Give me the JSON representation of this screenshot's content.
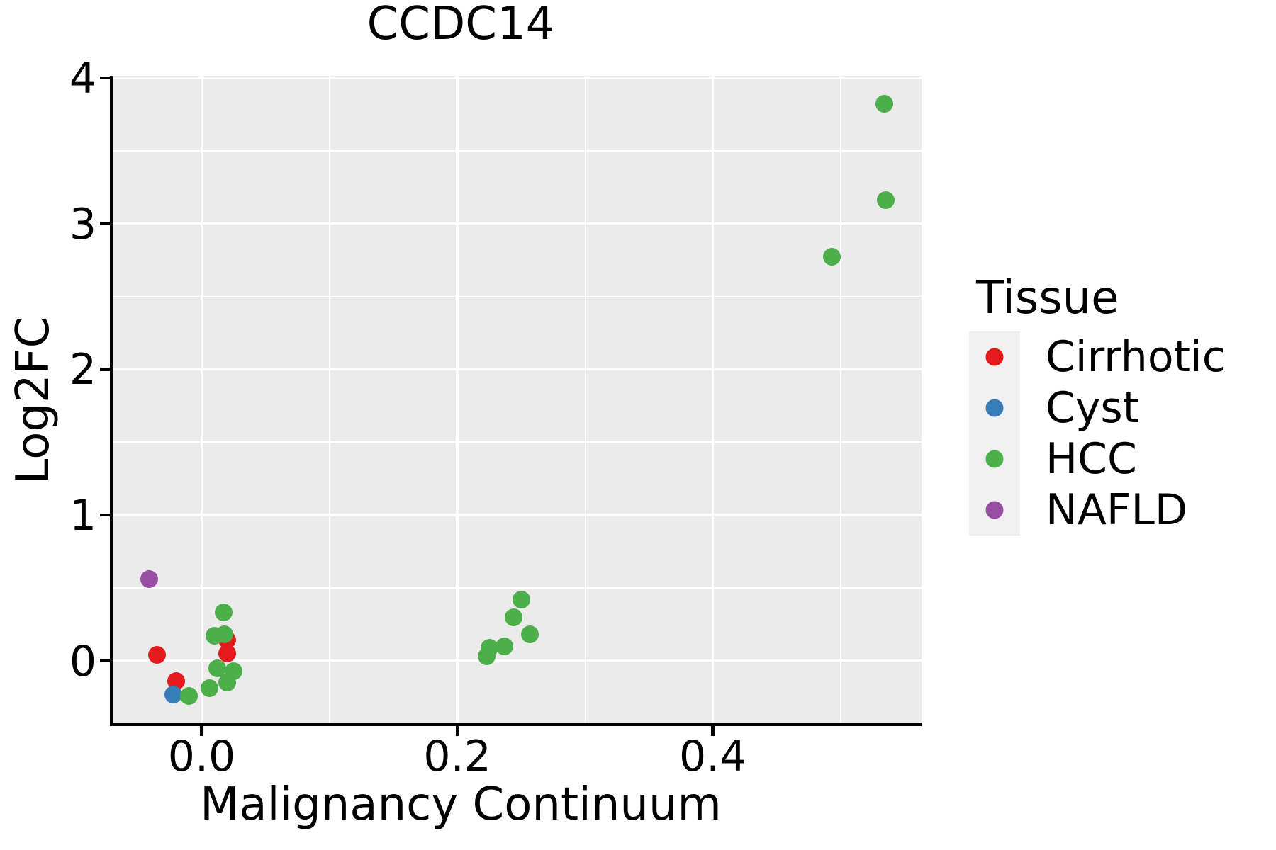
{
  "title": "CCDC14",
  "axes": {
    "x": {
      "label": "Malignancy Continuum",
      "tick_values": [
        0.0,
        0.2,
        0.4
      ],
      "tick_labels": [
        "0.0",
        "0.2",
        "0.4"
      ],
      "minor_tick_values": [
        0.1,
        0.3,
        0.5
      ],
      "range": [
        -0.0696,
        0.5632
      ]
    },
    "y": {
      "label": "Log2FC",
      "tick_values": [
        0,
        1,
        2,
        3,
        4
      ],
      "tick_labels": [
        "0",
        "1",
        "2",
        "3",
        "4"
      ],
      "minor_tick_values": [
        0.5,
        1.5,
        2.5,
        3.5
      ],
      "range": [
        -0.434,
        4.014
      ]
    }
  },
  "legend": {
    "title": "Tissue",
    "items": [
      {
        "label": "Cirrhotic",
        "color": "#E41A1C"
      },
      {
        "label": "Cyst",
        "color": "#377EB8"
      },
      {
        "label": "HCC",
        "color": "#4DAF4A"
      },
      {
        "label": "NAFLD",
        "color": "#984EA3"
      }
    ]
  },
  "colors": {
    "panel_background": "#EBEBEB",
    "gridline": "#FFFFFF",
    "axis": "#000000",
    "legend_key_background": "#F0F0F0"
  },
  "chart_data": {
    "type": "scatter",
    "title": "CCDC14",
    "xlabel": "Malignancy Continuum",
    "ylabel": "Log2FC",
    "xlim": [
      -0.0696,
      0.5632
    ],
    "ylim": [
      -0.434,
      4.014
    ],
    "grid": "major-and-minor",
    "legend_position": "right",
    "legend_title": "Tissue",
    "series": [
      {
        "name": "Cirrhotic",
        "color": "#E41A1C",
        "points": [
          [
            -0.035,
            0.04
          ],
          [
            -0.02,
            -0.14
          ],
          [
            0.02,
            0.14
          ],
          [
            0.02,
            0.05
          ]
        ]
      },
      {
        "name": "Cyst",
        "color": "#377EB8",
        "points": [
          [
            -0.022,
            -0.23
          ]
        ]
      },
      {
        "name": "HCC",
        "color": "#4DAF4A",
        "points": [
          [
            0.017,
            0.33
          ],
          [
            0.01,
            0.17
          ],
          [
            0.018,
            0.18
          ],
          [
            0.012,
            -0.05
          ],
          [
            0.025,
            -0.07
          ],
          [
            0.02,
            -0.15
          ],
          [
            0.006,
            -0.19
          ],
          [
            -0.01,
            -0.24
          ],
          [
            0.25,
            0.42
          ],
          [
            0.244,
            0.3
          ],
          [
            0.257,
            0.18
          ],
          [
            0.237,
            0.1
          ],
          [
            0.225,
            0.09
          ],
          [
            0.223,
            0.03
          ],
          [
            0.534,
            3.82
          ],
          [
            0.535,
            3.16
          ],
          [
            0.493,
            2.77
          ]
        ]
      },
      {
        "name": "NAFLD",
        "color": "#984EA3",
        "points": [
          [
            -0.041,
            0.56
          ]
        ]
      }
    ]
  }
}
